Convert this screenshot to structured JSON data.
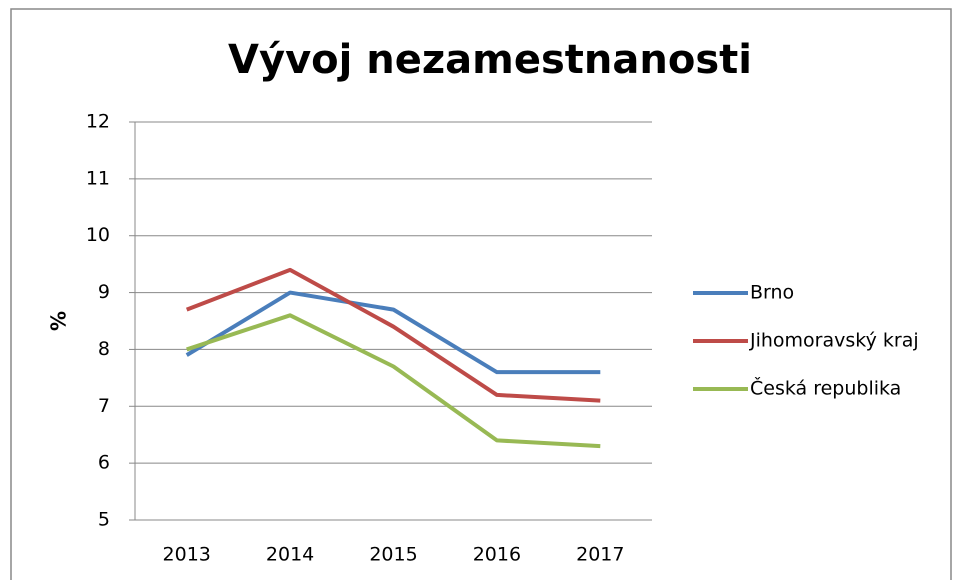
{
  "chart_data": {
    "type": "line",
    "title": "Vývoj nezamestnanosti",
    "y_label": "%",
    "categories": [
      "2013",
      "2014",
      "2015",
      "2016",
      "2017"
    ],
    "series": [
      {
        "name": "Brno",
        "color": "#4a7ebb",
        "values": [
          7.9,
          9.0,
          8.7,
          7.6,
          7.6
        ]
      },
      {
        "name": "Jihomoravský kraj",
        "color": "#be4b48",
        "values": [
          8.7,
          9.4,
          8.4,
          7.2,
          7.1
        ]
      },
      {
        "name": "Česká republika",
        "color": "#98b954",
        "values": [
          8.0,
          8.6,
          7.7,
          6.4,
          6.3
        ]
      }
    ],
    "ylim": [
      5,
      12
    ],
    "yticks": [
      5,
      6,
      7,
      8,
      9,
      10,
      11,
      12
    ],
    "grid": true,
    "legend": "right"
  }
}
